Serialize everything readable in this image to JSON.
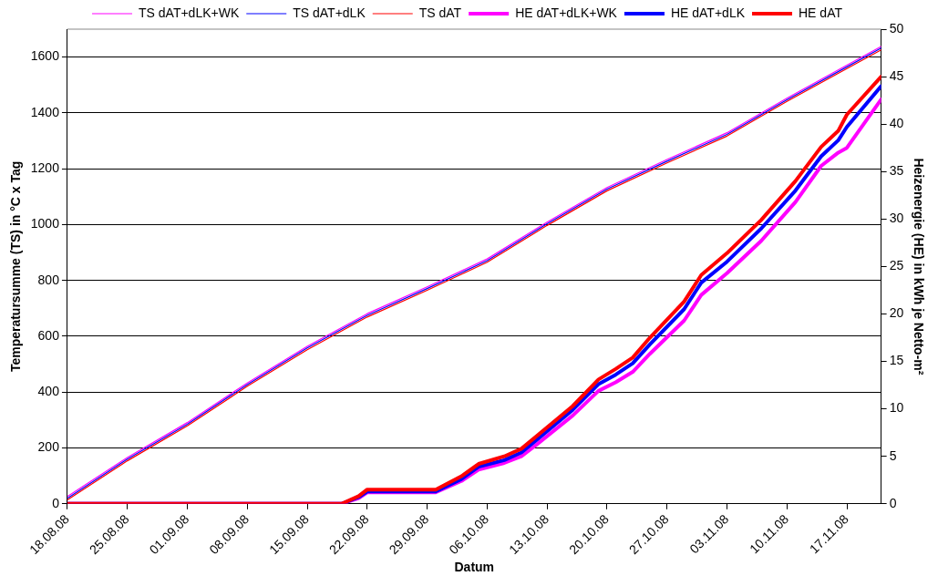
{
  "chart_data": {
    "type": "line",
    "xlabel": "Datum",
    "ylabel": "Temperatursumme (TS) in °C x Tag",
    "y2label": "Heizenergie (HE) in kWh je Netto-m²",
    "xlim": [
      "--08-18",
      "--11-21"
    ],
    "xticks": [
      {
        "value": "--08-18",
        "label": "18.08.08"
      },
      {
        "value": "--08-25",
        "label": "25.08.08"
      },
      {
        "value": "--09-01",
        "label": "01.09.08"
      },
      {
        "value": "--09-08",
        "label": "08.09.08"
      },
      {
        "value": "--09-15",
        "label": "15.09.08"
      },
      {
        "value": "--09-22",
        "label": "22.09.08"
      },
      {
        "value": "--09-29",
        "label": "29.09.08"
      },
      {
        "value": "--10-06",
        "label": "06.10.08"
      },
      {
        "value": "--10-13",
        "label": "13.10.08"
      },
      {
        "value": "--10-20",
        "label": "20.10.08"
      },
      {
        "value": "--10-27",
        "label": "27.10.08"
      },
      {
        "value": "--11-03",
        "label": "03.11.08"
      },
      {
        "value": "--11-10",
        "label": "10.11.08"
      },
      {
        "value": "--11-17",
        "label": "17.11.08"
      }
    ],
    "ylim": [
      0,
      1700
    ],
    "yticks": [
      0,
      200,
      400,
      600,
      800,
      1000,
      1200,
      1400,
      1600
    ],
    "y2lim": [
      0,
      50
    ],
    "y2ticks": [
      0,
      5,
      10,
      15,
      20,
      25,
      30,
      35,
      40,
      45,
      50
    ],
    "grid": "y",
    "legend": "top",
    "marker": "none",
    "line_style": "solid",
    "series": [
      {
        "name": "TS dAT+dLK+WK",
        "color": "#ff00ff",
        "x": [
          "--08-18",
          "--08-25",
          "--09-01",
          "--09-08",
          "--09-15",
          "--09-22",
          "--09-29",
          "--10-06",
          "--10-13",
          "--10-20",
          "--10-27",
          "--11-03",
          "--11-10",
          "--11-17",
          "--11-21"
        ],
        "values": [
          26,
          166,
          291,
          433,
          564,
          681,
          777,
          877,
          1009,
          1133,
          1233,
          1329,
          1453,
          1571,
          1638
        ]
      },
      {
        "name": "TS dAT+dLK",
        "color": "#0000ff",
        "x": [
          "--08-18",
          "--08-25",
          "--09-01",
          "--09-08",
          "--09-15",
          "--09-22",
          "--09-29",
          "--10-06",
          "--10-13",
          "--10-20",
          "--10-27",
          "--11-03",
          "--11-10",
          "--11-17",
          "--11-21"
        ],
        "values": [
          20,
          160,
          285,
          427,
          558,
          675,
          771,
          871,
          1003,
          1127,
          1227,
          1323,
          1447,
          1565,
          1632
        ]
      },
      {
        "name": "TS dAT",
        "color": "#ff0000",
        "x": [
          "--08-18",
          "--08-25",
          "--09-01",
          "--09-08",
          "--09-15",
          "--09-22",
          "--09-29",
          "--10-06",
          "--10-13",
          "--10-20",
          "--10-27",
          "--11-03",
          "--11-10",
          "--11-17",
          "--11-21"
        ],
        "values": [
          14,
          154,
          279,
          421,
          552,
          669,
          765,
          865,
          997,
          1121,
          1221,
          1317,
          1441,
          1559,
          1626
        ]
      },
      {
        "name": "HE dAT+dLK+WK",
        "color": "#ff00ff",
        "axis": "y2",
        "x": [
          "--08-18",
          "--09-19",
          "--09-21",
          "--09-22",
          "--09-30",
          "--10-03",
          "--10-05",
          "--10-08",
          "--10-10",
          "--10-12",
          "--10-16",
          "--10-19",
          "--10-21",
          "--10-23",
          "--10-25",
          "--10-29",
          "--10-31",
          "--11-03",
          "--11-07",
          "--11-11",
          "--11-14",
          "--11-16",
          "--11-17",
          "--11-21"
        ],
        "values": [
          0,
          0,
          0.6,
          1.2,
          1.2,
          2.4,
          3.6,
          4.3,
          5.0,
          6.4,
          9.3,
          11.9,
          12.8,
          13.9,
          15.8,
          19.3,
          22.0,
          24.3,
          27.7,
          31.8,
          35.6,
          37.0,
          37.5,
          42.6
        ]
      },
      {
        "name": "HE dAT+dLK",
        "color": "#0000ff",
        "axis": "y2",
        "x": [
          "--08-18",
          "--09-19",
          "--09-21",
          "--09-22",
          "--09-30",
          "--10-03",
          "--10-05",
          "--10-08",
          "--10-10",
          "--10-12",
          "--10-16",
          "--10-19",
          "--10-21",
          "--10-23",
          "--10-25",
          "--10-29",
          "--10-31",
          "--11-03",
          "--11-07",
          "--11-11",
          "--11-14",
          "--11-16",
          "--11-17",
          "--11-21"
        ],
        "values": [
          0,
          0,
          0.7,
          1.3,
          1.3,
          2.6,
          3.9,
          4.6,
          5.4,
          6.9,
          9.9,
          12.6,
          13.6,
          14.8,
          16.8,
          20.5,
          23.3,
          25.5,
          29.0,
          33.0,
          36.6,
          38.3,
          39.7,
          44.0
        ]
      },
      {
        "name": "HE dAT",
        "color": "#ff0000",
        "axis": "y2",
        "x": [
          "--08-18",
          "--09-19",
          "--09-21",
          "--09-22",
          "--09-30",
          "--10-03",
          "--10-05",
          "--10-08",
          "--10-10",
          "--10-12",
          "--10-16",
          "--10-19",
          "--10-21",
          "--10-23",
          "--10-25",
          "--10-29",
          "--10-31",
          "--11-03",
          "--11-07",
          "--11-11",
          "--11-14",
          "--11-16",
          "--11-17",
          "--11-21"
        ],
        "values": [
          0,
          0,
          0.8,
          1.5,
          1.5,
          2.9,
          4.2,
          5.0,
          5.8,
          7.3,
          10.3,
          13.1,
          14.2,
          15.4,
          17.5,
          21.3,
          24.1,
          26.4,
          29.9,
          34.0,
          37.6,
          39.3,
          41.0,
          45.0
        ]
      }
    ]
  }
}
